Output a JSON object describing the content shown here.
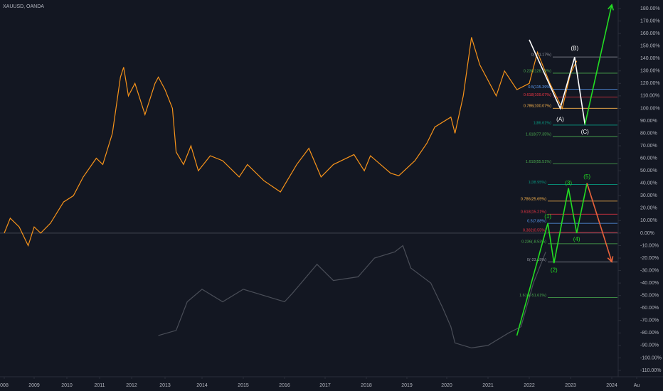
{
  "chart_data": {
    "type": "line",
    "title": "XAUUSD, OANDA",
    "xticks": [
      {
        "value": 2008,
        "label": "008"
      },
      2009,
      2010,
      2011,
      2012,
      2013,
      2014,
      2015,
      2016,
      2017,
      2018,
      2019,
      2020,
      2021,
      2022,
      2023,
      2024,
      {
        "value": 2024.6,
        "label": "Au"
      }
    ],
    "xlim": [
      2007.9,
      2024.7
    ],
    "ylim": [
      -115,
      186
    ],
    "yticks": [
      {
        "value": 180,
        "label": "180.00%"
      },
      {
        "value": 170,
        "label": "170.00%"
      },
      {
        "value": 160,
        "label": "160.00%"
      },
      {
        "value": 150,
        "label": "150.00%"
      },
      {
        "value": 140,
        "label": "140.00%"
      },
      {
        "value": 130,
        "label": "130.00%"
      },
      {
        "value": 120,
        "label": "120.00%"
      },
      {
        "value": 110,
        "label": "110.00%"
      },
      {
        "value": 100,
        "label": "100.00%"
      },
      {
        "value": 90,
        "label": "90.00%"
      },
      {
        "value": 80,
        "label": "80.00%"
      },
      {
        "value": 70,
        "label": "70.00%"
      },
      {
        "value": 60,
        "label": "60.00%"
      },
      {
        "value": 50,
        "label": "50.00%"
      },
      {
        "value": 40,
        "label": "40.00%"
      },
      {
        "value": 30,
        "label": "30.00%"
      },
      {
        "value": 20,
        "label": "20.00%"
      },
      {
        "value": 10,
        "label": "10.00%"
      },
      {
        "value": 0,
        "label": "0.00%"
      },
      {
        "value": -10,
        "label": "-10.00%"
      },
      {
        "value": -20,
        "label": "-20.00%"
      },
      {
        "value": -30,
        "label": "-30.00%"
      },
      {
        "value": -40,
        "label": "-40.00%"
      },
      {
        "value": -50,
        "label": "-50.00%"
      },
      {
        "value": -60,
        "label": "-60.00%"
      },
      {
        "value": -70,
        "label": "-70.00%"
      },
      {
        "value": -80,
        "label": "-80.00%"
      },
      {
        "value": -90,
        "label": "-90.00%"
      },
      {
        "value": -100,
        "label": "-100.00%"
      },
      {
        "value": -110,
        "label": "-110.00%"
      }
    ],
    "series": [
      {
        "color": "#f7931a",
        "x": [
          2008.0,
          2008.2,
          2008.5,
          2008.8,
          2009.0,
          2009.2,
          2009.5,
          2009.9,
          2010.2,
          2010.5,
          2010.9,
          2011.1,
          2011.4,
          2011.65,
          2011.75,
          2011.9,
          2012.1,
          2012.4,
          2012.7,
          2012.8,
          2013.0,
          2013.2,
          2013.3,
          2013.5,
          2013.7,
          2013.9,
          2014.2,
          2014.5,
          2014.9,
          2015.1,
          2015.5,
          2015.9,
          2016.3,
          2016.6,
          2016.9,
          2017.2,
          2017.7,
          2017.95,
          2018.1,
          2018.6,
          2018.8,
          2019.2,
          2019.5,
          2019.7,
          2020.1,
          2020.2,
          2020.4,
          2020.6,
          2020.8,
          2021.2,
          2021.4,
          2021.7,
          2022.0,
          2022.2,
          2022.5,
          2022.8,
          2023.0,
          2023.15
        ],
        "values": [
          0,
          12,
          5,
          -10,
          5,
          0,
          8,
          25,
          30,
          45,
          60,
          55,
          80,
          125,
          133,
          110,
          120,
          95,
          120,
          125,
          115,
          100,
          65,
          55,
          70,
          50,
          62,
          58,
          45,
          55,
          42,
          33,
          55,
          68,
          45,
          55,
          63,
          50,
          62,
          48,
          46,
          58,
          72,
          85,
          93,
          80,
          110,
          157,
          135,
          110,
          130,
          115,
          120,
          145,
          120,
          100,
          128,
          138
        ]
      },
      {
        "color": "#4a4e58",
        "x": [
          2012.8,
          2013.3,
          2013.6,
          2014.0,
          2014.5,
          2015.0,
          2015.5,
          2016.0,
          2016.2,
          2016.8,
          2017.2,
          2017.8,
          2018.2,
          2018.7,
          2018.9,
          2019.1,
          2019.6,
          2019.9,
          2020.1,
          2020.2,
          2020.6,
          2021.0,
          2021.5,
          2021.8,
          2022.1,
          2022.4
        ],
        "values": [
          -82,
          -78,
          -55,
          -45,
          -55,
          -45,
          -50,
          -55,
          -48,
          -25,
          -38,
          -35,
          -20,
          -15,
          -10,
          -28,
          -40,
          -60,
          -75,
          -88,
          -92,
          -90,
          -80,
          -75,
          -40,
          -15
        ]
      }
    ],
    "fib_levels": [
      {
        "label": "0(141.17%)",
        "y": 141.17,
        "color": "#9598a1"
      },
      {
        "label": "0.236(128.18%)",
        "y": 128.18,
        "color": "#4caf50"
      },
      {
        "label": "0.5(115.39%)",
        "y": 115.39,
        "color": "#5b9cf6"
      },
      {
        "label": "0.618(109.07%)",
        "y": 109.07,
        "color": "#f23645"
      },
      {
        "label": "0.786(100.07%)",
        "y": 100.07,
        "color": "#ffb74d"
      },
      {
        "label": "1(86.61%)",
        "y": 86.61,
        "color": "#089981"
      },
      {
        "label": "1.618(77.35%)",
        "y": 77.35,
        "color": "#4caf50"
      },
      {
        "label": "1.618(55.51%)",
        "y": 55.51,
        "color": "#4caf50"
      },
      {
        "label": "1(38.95%)",
        "y": 38.95,
        "color": "#089981"
      },
      {
        "label": "0.786(25.65%)",
        "y": 25.65,
        "color": "#ffb74d"
      },
      {
        "label": "0.618(15.21%)",
        "y": 15.21,
        "color": "#f23645"
      },
      {
        "label": "0.5(7.88%)",
        "y": 7.88,
        "color": "#5b9cf6"
      },
      {
        "label": "0.382(0.55%)",
        "y": 0.55,
        "color": "#f23645"
      },
      {
        "label": "0.236(-8.53%)",
        "y": -8.53,
        "color": "#4caf50"
      },
      {
        "label": "0(-23.19%)",
        "y": -23.19,
        "color": "#9598a1"
      },
      {
        "label": "1.618(-51.61%)",
        "y": -51.61,
        "color": "#4caf50"
      }
    ],
    "waves": [
      {
        "color": "#ffffff",
        "x": [
          2022.0,
          2022.75,
          2023.1,
          2023.35
        ],
        "y": [
          155,
          100,
          141,
          87
        ]
      },
      {
        "color": "#22dd22",
        "x": [
          2023.35,
          2024.0
        ],
        "y": [
          87,
          183
        ]
      },
      {
        "color": "#22dd22",
        "x": [
          2021.7,
          2022.45,
          2022.6,
          2022.95,
          2023.15,
          2023.4
        ],
        "y": [
          -82,
          8,
          -24,
          36,
          0,
          40
        ]
      },
      {
        "color": "#e8623a",
        "x": [
          2023.4,
          2024.0
        ],
        "y": [
          40,
          -23
        ]
      }
    ],
    "wave_labels": [
      {
        "text": "(A)",
        "x": 2022.75,
        "y": 91,
        "color": "#ffffff"
      },
      {
        "text": "(B)",
        "x": 2023.1,
        "y": 148,
        "color": "#ffffff"
      },
      {
        "text": "(C)",
        "x": 2023.35,
        "y": 81,
        "color": "#ffffff"
      },
      {
        "text": "(1)",
        "x": 2022.45,
        "y": 13,
        "color": "#22dd22"
      },
      {
        "text": "(2)",
        "x": 2022.6,
        "y": -30,
        "color": "#22dd22"
      },
      {
        "text": "(3)",
        "x": 2022.95,
        "y": 40,
        "color": "#22dd22"
      },
      {
        "text": "(4)",
        "x": 2023.15,
        "y": -5,
        "color": "#22dd22"
      },
      {
        "text": "(5)",
        "x": 2023.4,
        "y": 45,
        "color": "#22dd22"
      }
    ]
  }
}
